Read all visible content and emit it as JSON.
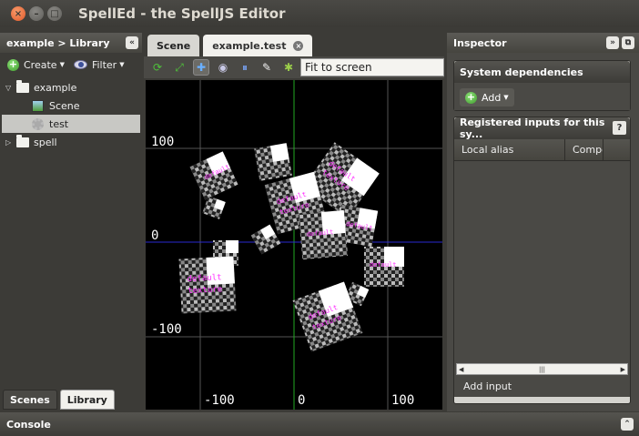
{
  "window": {
    "title": "SpellEd - the SpellJS Editor"
  },
  "left_panel": {
    "header": "example > Library",
    "toolbar": {
      "create_label": "Create",
      "filter_label": "Filter"
    },
    "tree": [
      {
        "label": "example",
        "type": "folder",
        "expanded": true
      },
      {
        "label": "Scene",
        "type": "scene"
      },
      {
        "label": "test",
        "type": "gear",
        "selected": true
      },
      {
        "label": "spell",
        "type": "folder",
        "expanded": false
      }
    ],
    "tabs": [
      {
        "label": "Scenes",
        "active": true
      },
      {
        "label": "Library",
        "active": false
      }
    ]
  },
  "center": {
    "tabs": [
      {
        "label": "Scene"
      },
      {
        "label": "example.test",
        "closable": true
      }
    ],
    "zoom_value": "Fit to screen",
    "canvas": {
      "axis_labels": {
        "y_top": "100",
        "y_mid": "0",
        "y_bottom": "-100",
        "x_left": "-100",
        "x_mid": "0",
        "x_right": "100"
      },
      "sprite_text_1": "default",
      "sprite_text_2": "texture"
    }
  },
  "inspector": {
    "header": "Inspector",
    "system_dependencies": {
      "title": "System dependencies",
      "add_label": "Add"
    },
    "registered_inputs": {
      "title": "Registered inputs for this sy...",
      "columns": [
        "Local alias",
        "Compo"
      ],
      "add_input_label": "Add input"
    }
  },
  "console": {
    "label": "Console"
  },
  "colors": {
    "accent_green": "#3e9b2c",
    "canvas_bg": "#000000",
    "sprite_text": "#ff33ff",
    "x_axis": "#2a2ad0",
    "y_axis": "#22aa22"
  }
}
